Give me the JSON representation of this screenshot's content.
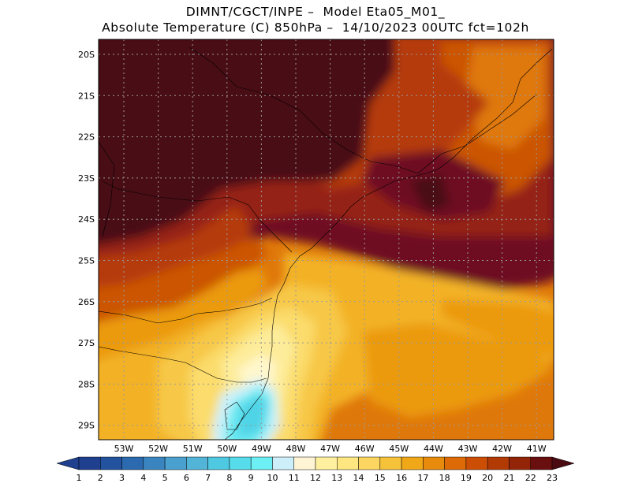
{
  "title_line1": "DIMNT/CGCT/INPE –  Model Eta05_M01_",
  "title_line2": "Absolute Temperature (C) 850hPa –  14/10/2023 00UTC fct=102h",
  "lat_labels": [
    "20S",
    "21S",
    "22S",
    "23S",
    "24S",
    "25S",
    "26S",
    "27S",
    "28S",
    "29S"
  ],
  "lon_labels": [
    "53W",
    "52W",
    "51W",
    "50W",
    "49W",
    "48W",
    "47W",
    "46W",
    "45W",
    "44W",
    "43W",
    "42W",
    "41W"
  ],
  "colorbar": {
    "labels": [
      "1",
      "2",
      "3",
      "4",
      "5",
      "6",
      "7",
      "8",
      "9",
      "10",
      "11",
      "12",
      "13",
      "14",
      "15",
      "16",
      "17",
      "18",
      "19",
      "20",
      "21",
      "22",
      "23"
    ],
    "colors": [
      "#1f3f8f",
      "#23529f",
      "#2b6aae",
      "#3a85c0",
      "#4aa0cf",
      "#52b5d8",
      "#4fc9e2",
      "#56dceb",
      "#6cf0f4",
      "#cdeffa",
      "#fff4d4",
      "#fff0a0",
      "#fee680",
      "#fcd660",
      "#f6c23a",
      "#f0a818",
      "#e88a0c",
      "#dd6a06",
      "#cc4e05",
      "#b23a05",
      "#932407",
      "#6a0f0f",
      "#4a0a12"
    ]
  },
  "map_colors": {
    "t22": "#4a0e16",
    "t21": "#6e0a22",
    "t20": "#952213",
    "t19": "#b53a0c",
    "t18": "#cb5406",
    "t17": "#df780a",
    "t16": "#eb9a10",
    "t15": "#f3b227",
    "t14": "#f7c847",
    "t13": "#fbdc6c",
    "t12": "#fdec9a",
    "t11": "#fff7cc",
    "t10": "#cdf1fa",
    "t9": "#6cebf3",
    "t8": "#4fd3e6"
  },
  "grid": true,
  "projection": "lat-lon"
}
